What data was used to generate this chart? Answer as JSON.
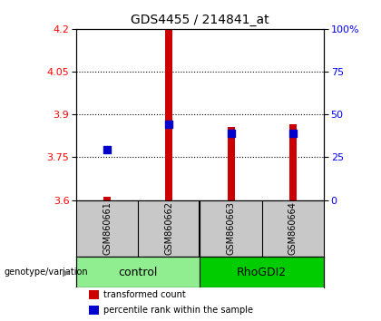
{
  "title": "GDS4455 / 214841_at",
  "samples": [
    "GSM860661",
    "GSM860662",
    "GSM860663",
    "GSM860664"
  ],
  "groups": [
    "control",
    "control",
    "RhoGDI2",
    "RhoGDI2"
  ],
  "group_labels": [
    "control",
    "RhoGDI2"
  ],
  "transformed_counts": [
    3.61,
    4.2,
    3.855,
    3.865
  ],
  "percentile_ranks": [
    3.775,
    3.865,
    3.835,
    3.835
  ],
  "ylim_left": [
    3.6,
    4.2
  ],
  "yticks_left": [
    3.6,
    3.75,
    3.9,
    4.05,
    4.2
  ],
  "yticks_right": [
    0,
    25,
    50,
    75,
    100
  ],
  "bar_color": "#CC0000",
  "dot_color": "#0000CC",
  "bar_width": 0.12,
  "dot_size": 35,
  "background_color": "#FFFFFF",
  "plot_bg_color": "#FFFFFF",
  "label_area_color": "#C8C8C8",
  "control_color": "#90EE90",
  "rhogdi2_color": "#00CC00",
  "legend_red_label": "transformed count",
  "legend_blue_label": "percentile rank within the sample",
  "title_fontsize": 10,
  "tick_fontsize": 8,
  "sample_fontsize": 7,
  "group_fontsize": 9,
  "legend_fontsize": 7
}
